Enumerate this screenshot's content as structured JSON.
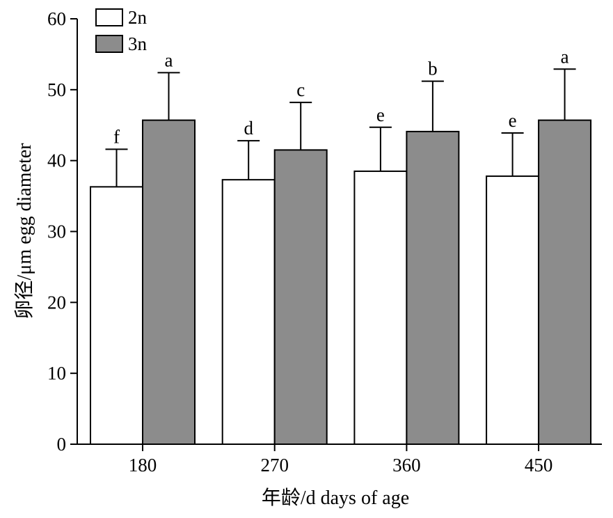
{
  "chart_data": {
    "type": "bar",
    "title": "",
    "xlabel": "年龄/d days of age",
    "ylabel": "卵径/μm egg diameter",
    "ylim": [
      0,
      60
    ],
    "yticks": [
      0,
      10,
      20,
      30,
      40,
      50,
      60
    ],
    "grid": false,
    "legend_position": "top-left",
    "categories": [
      "180",
      "270",
      "360",
      "450"
    ],
    "series": [
      {
        "name": "2n",
        "color": "#ffffff",
        "values": [
          36.3,
          37.3,
          38.5,
          37.8
        ],
        "errors": [
          5.3,
          5.5,
          6.2,
          6.1
        ],
        "labels": [
          "f",
          "d",
          "e",
          "e"
        ]
      },
      {
        "name": "3n",
        "color": "#8c8c8c",
        "values": [
          45.7,
          41.5,
          44.1,
          45.7
        ],
        "errors": [
          6.7,
          6.7,
          7.1,
          7.2
        ],
        "labels": [
          "a",
          "c",
          "b",
          "a"
        ]
      }
    ]
  }
}
